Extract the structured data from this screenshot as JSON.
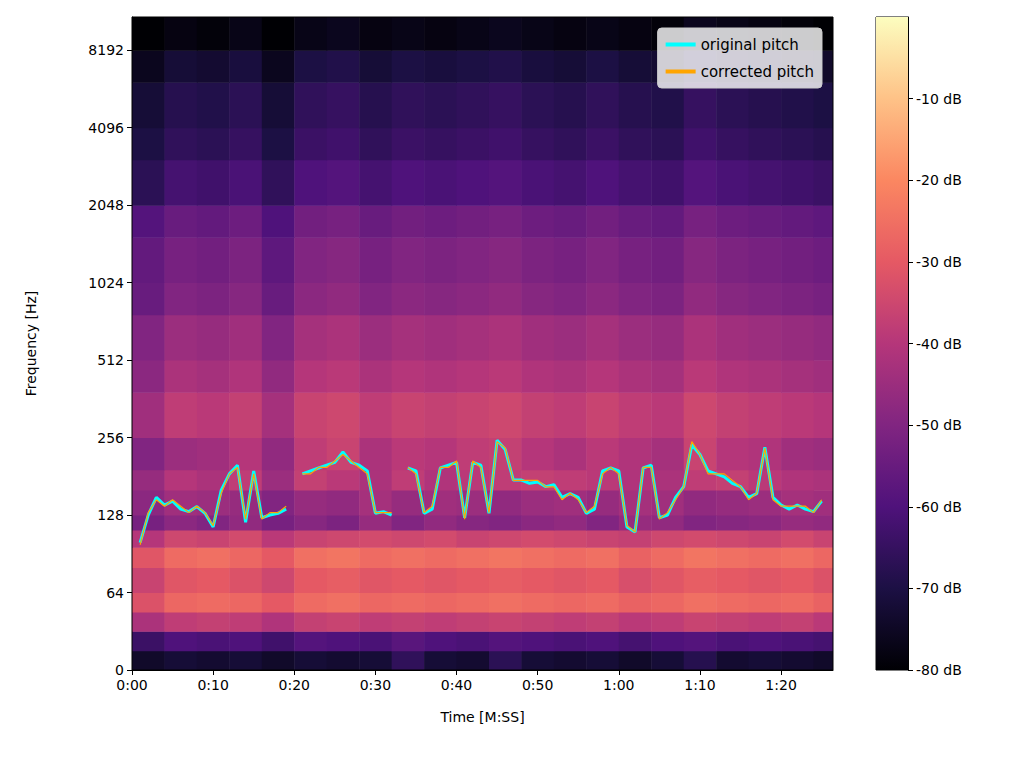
{
  "chart_data": {
    "type": "heatmap",
    "x_label": "Time [M:SS]",
    "y_label": "Frequency [Hz]",
    "log": "y",
    "grid": false,
    "legend": "upper right",
    "xlim": [
      0,
      86.4
    ],
    "xticks": [
      {
        "value": 0,
        "label": "0:00"
      },
      {
        "value": 10,
        "label": "0:10"
      },
      {
        "value": 20,
        "label": "0:20"
      },
      {
        "value": 30,
        "label": "0:30"
      },
      {
        "value": 40,
        "label": "0:40"
      },
      {
        "value": 50,
        "label": "0:50"
      },
      {
        "value": 60,
        "label": "1:00"
      },
      {
        "value": 70,
        "label": "1:10"
      },
      {
        "value": 80,
        "label": "1:20"
      }
    ],
    "ylim": [
      0,
      11025
    ],
    "yticks": [
      0,
      64,
      128,
      256,
      512,
      1024,
      2048,
      4096,
      8192
    ],
    "colorbar": {
      "range": [
        -80,
        0
      ],
      "ticks": [
        {
          "value": -10,
          "label": "-10 dB"
        },
        {
          "value": -20,
          "label": "-20 dB"
        },
        {
          "value": -30,
          "label": "-30 dB"
        },
        {
          "value": -40,
          "label": "-40 dB"
        },
        {
          "value": -50,
          "label": "-50 dB"
        },
        {
          "value": -60,
          "label": "-60 dB"
        },
        {
          "value": -70,
          "label": "-70 dB"
        },
        {
          "value": -80,
          "label": "-80 dB"
        }
      ]
    },
    "spectrogram": {
      "time_edges": [
        0,
        4,
        8,
        12,
        16,
        20,
        24,
        28,
        32,
        36,
        40,
        44,
        48,
        52,
        56,
        60,
        64,
        68,
        72,
        76,
        80,
        84,
        86.4
      ],
      "freq_edges": [
        0,
        16,
        32,
        48,
        64,
        80,
        96,
        112,
        128,
        160,
        192,
        256,
        384,
        512,
        768,
        1024,
        1536,
        2048,
        3072,
        4096,
        6144,
        8192,
        11025
      ],
      "db": [
        [
          -74,
          -72,
          -73,
          -72,
          -74,
          -72,
          -73,
          -72,
          -66,
          -72,
          -73,
          -67,
          -72,
          -73,
          -72,
          -74,
          -72,
          -68,
          -73,
          -72,
          -73,
          -74
        ],
        [
          -64,
          -60,
          -61,
          -60,
          -63,
          -59,
          -60,
          -61,
          -58,
          -60,
          -61,
          -59,
          -60,
          -61,
          -60,
          -62,
          -60,
          -59,
          -61,
          -60,
          -61,
          -62
        ],
        [
          -42,
          -38,
          -37,
          -38,
          -41,
          -37,
          -36,
          -38,
          -37,
          -38,
          -37,
          -36,
          -37,
          -38,
          -37,
          -39,
          -38,
          -36,
          -37,
          -38,
          -37,
          -39
        ],
        [
          -32,
          -27,
          -26,
          -27,
          -30,
          -26,
          -25,
          -27,
          -26,
          -27,
          -26,
          -25,
          -26,
          -27,
          -26,
          -28,
          -27,
          -25,
          -26,
          -27,
          -26,
          -28
        ],
        [
          -36,
          -31,
          -30,
          -32,
          -35,
          -30,
          -29,
          -31,
          -30,
          -31,
          -30,
          -29,
          -30,
          -31,
          -30,
          -33,
          -31,
          -29,
          -30,
          -31,
          -30,
          -32
        ],
        [
          -31,
          -26,
          -25,
          -27,
          -30,
          -25,
          -24,
          -26,
          -25,
          -26,
          -25,
          -24,
          -25,
          -26,
          -25,
          -28,
          -26,
          -24,
          -25,
          -26,
          -25,
          -27
        ],
        [
          -40,
          -35,
          -36,
          -34,
          -39,
          -36,
          -35,
          -34,
          -35,
          -34,
          -36,
          -35,
          -34,
          -35,
          -36,
          -37,
          -35,
          -34,
          -35,
          -36,
          -34,
          -36
        ],
        [
          -52,
          -48,
          -50,
          -47,
          -52,
          -49,
          -51,
          -46,
          -50,
          -47,
          -49,
          -50,
          -48,
          -47,
          -50,
          -46,
          -47,
          -50,
          -49,
          -48,
          -46,
          -47
        ],
        [
          -48,
          -44,
          -45,
          -46,
          -50,
          -46,
          -47,
          -43,
          -46,
          -44,
          -45,
          -47,
          -45,
          -44,
          -46,
          -43,
          -44,
          -47,
          -46,
          -45,
          -43,
          -44
        ],
        [
          -46,
          -40,
          -42,
          -38,
          -45,
          -37,
          -39,
          -42,
          -38,
          -41,
          -39,
          -38,
          -37,
          -38,
          -39,
          -41,
          -42,
          -38,
          -37,
          -39,
          -41,
          -42
        ],
        [
          -50,
          -45,
          -44,
          -40,
          -47,
          -38,
          -36,
          -42,
          -39,
          -40,
          -38,
          -37,
          -40,
          -42,
          -39,
          -41,
          -43,
          -36,
          -40,
          -41,
          -44,
          -45
        ],
        [
          -44,
          -38,
          -39,
          -37,
          -43,
          -36,
          -35,
          -38,
          -36,
          -37,
          -36,
          -35,
          -37,
          -38,
          -36,
          -38,
          -39,
          -35,
          -37,
          -38,
          -39,
          -40
        ],
        [
          -48,
          -42,
          -43,
          -41,
          -47,
          -40,
          -39,
          -42,
          -40,
          -41,
          -40,
          -39,
          -41,
          -42,
          -40,
          -42,
          -43,
          -39,
          -41,
          -42,
          -43,
          -44
        ],
        [
          -50,
          -45,
          -46,
          -44,
          -50,
          -43,
          -42,
          -45,
          -43,
          -44,
          -43,
          -42,
          -44,
          -45,
          -43,
          -45,
          -46,
          -42,
          -44,
          -45,
          -46,
          -47
        ],
        [
          -55,
          -50,
          -51,
          -49,
          -55,
          -48,
          -47,
          -50,
          -48,
          -49,
          -48,
          -47,
          -49,
          -50,
          -48,
          -50,
          -51,
          -47,
          -49,
          -50,
          -51,
          -52
        ],
        [
          -56,
          -52,
          -53,
          -51,
          -57,
          -50,
          -49,
          -52,
          -50,
          -51,
          -50,
          -49,
          -51,
          -52,
          -50,
          -52,
          -53,
          -49,
          -51,
          -52,
          -53,
          -54
        ],
        [
          -59,
          -55,
          -56,
          -54,
          -60,
          -53,
          -52,
          -55,
          -53,
          -54,
          -53,
          -52,
          -54,
          -55,
          -53,
          -55,
          -56,
          -52,
          -54,
          -55,
          -56,
          -57
        ],
        [
          -67,
          -62,
          -63,
          -61,
          -66,
          -60,
          -59,
          -62,
          -60,
          -61,
          -60,
          -59,
          -61,
          -62,
          -60,
          -62,
          -63,
          -59,
          -61,
          -62,
          -63,
          -64
        ],
        [
          -70,
          -66,
          -67,
          -65,
          -70,
          -64,
          -63,
          -66,
          -64,
          -65,
          -64,
          -63,
          -65,
          -66,
          -64,
          -66,
          -67,
          -63,
          -65,
          -66,
          -67,
          -68
        ],
        [
          -72,
          -68,
          -69,
          -67,
          -72,
          -66,
          -65,
          -68,
          -66,
          -67,
          -66,
          -65,
          -67,
          -68,
          -66,
          -68,
          -69,
          -65,
          -67,
          -68,
          -69,
          -70
        ],
        [
          -76,
          -72,
          -73,
          -71,
          -76,
          -70,
          -69,
          -72,
          -70,
          -71,
          -70,
          -69,
          -71,
          -72,
          -70,
          -72,
          -73,
          -69,
          -71,
          -72,
          -73,
          -74
        ],
        [
          -80,
          -78,
          -79,
          -77,
          -80,
          -77,
          -76,
          -78,
          -77,
          -78,
          -77,
          -76,
          -77,
          -78,
          -77,
          -78,
          -79,
          -76,
          -77,
          -78,
          -79,
          -80
        ]
      ]
    },
    "x": [
      1,
      2,
      3,
      4,
      5,
      6,
      7,
      8,
      9,
      10,
      11,
      12,
      13,
      14,
      15,
      16,
      17,
      18,
      19,
      20,
      21,
      22,
      23,
      24,
      25,
      26,
      27,
      28,
      29,
      30,
      31,
      32,
      33,
      34,
      35,
      36,
      37,
      38,
      39,
      40,
      41,
      42,
      43,
      44,
      45,
      46,
      47,
      48,
      49,
      50,
      51,
      52,
      53,
      54,
      55,
      56,
      57,
      58,
      59,
      60,
      61,
      62,
      63,
      64,
      65,
      66,
      67,
      68,
      69,
      70,
      71,
      72,
      73,
      74,
      75,
      76,
      77,
      78,
      79,
      80,
      81,
      82,
      83,
      84,
      85
    ],
    "series": [
      {
        "name": "original pitch",
        "type": "line",
        "color": "#00ffff",
        "line_style": "solid",
        "values": [
          100,
          128,
          150,
          140,
          145,
          135,
          132,
          138,
          130,
          115,
          160,
          185,
          200,
          120,
          190,
          125,
          128,
          130,
          135,
          null,
          185,
          190,
          195,
          200,
          205,
          225,
          205,
          200,
          190,
          130,
          132,
          128,
          null,
          195,
          190,
          130,
          135,
          195,
          200,
          205,
          125,
          205,
          200,
          130,
          250,
          230,
          175,
          175,
          170,
          172,
          165,
          168,
          150,
          155,
          150,
          130,
          135,
          190,
          195,
          190,
          115,
          110,
          195,
          200,
          125,
          128,
          150,
          165,
          240,
          220,
          190,
          185,
          180,
          170,
          165,
          150,
          155,
          235,
          150,
          140,
          135,
          140,
          135,
          132,
          145
        ]
      },
      {
        "name": "corrected pitch",
        "type": "line",
        "color": "#ffa500",
        "line_style": "solid",
        "values": [
          98,
          130.8,
          146.8,
          138.6,
          146.8,
          138.6,
          130.8,
          138.6,
          130.8,
          116.5,
          155.6,
          185,
          196,
          123.5,
          185,
          123.5,
          130.8,
          130.8,
          138.6,
          null,
          185,
          185,
          196,
          196,
          207.7,
          220,
          207.7,
          196,
          185,
          130.8,
          130.8,
          130.8,
          null,
          196,
          185,
          130.8,
          138.6,
          196,
          196,
          207.7,
          123.5,
          207.7,
          196,
          130.8,
          246.9,
          233.1,
          174.6,
          174.6,
          174.6,
          174.6,
          164.8,
          164.8,
          146.8,
          155.6,
          146.8,
          130.8,
          138.6,
          185,
          196,
          185,
          116.5,
          110,
          196,
          196,
          123.5,
          130.8,
          146.8,
          164.8,
          246.9,
          220,
          185,
          185,
          185,
          174.6,
          164.8,
          146.8,
          155.6,
          233.1,
          146.8,
          138.6,
          138.6,
          138.6,
          138.6,
          130.8,
          146.8
        ]
      }
    ]
  }
}
